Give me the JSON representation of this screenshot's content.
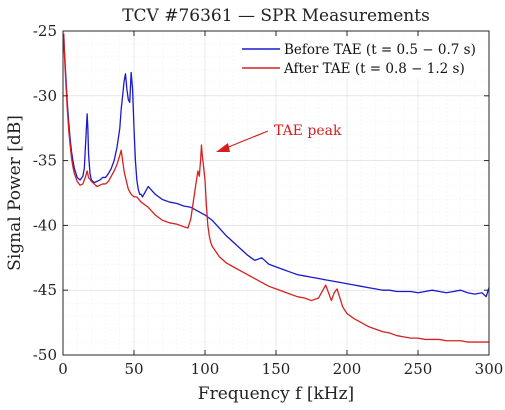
{
  "chart_data": {
    "type": "line",
    "title": "TCV #76361 — SPR Measurements",
    "xlabel": "Frequency f [kHz]",
    "ylabel": "Signal Power [dB]",
    "xlim": [
      0,
      300
    ],
    "ylim": [
      -50,
      -25
    ],
    "x_ticks": [
      0,
      50,
      100,
      150,
      200,
      250,
      300
    ],
    "y_ticks": [
      -25,
      -30,
      -35,
      -40,
      -45,
      -50
    ],
    "grid": true,
    "minor_grid": true,
    "legend_position": "top-right",
    "series": [
      {
        "name": "Before TAE (t = 0.5 − 0.7 s)",
        "color": "#1a1acc",
        "x": [
          0.5,
          1,
          2,
          3,
          4,
          5,
          6,
          7,
          8,
          10,
          12,
          14,
          15,
          16,
          17,
          17.5,
          18,
          19,
          20,
          22,
          24,
          26,
          28,
          30,
          32,
          34,
          36,
          38,
          40,
          41,
          42,
          43,
          44,
          45,
          46,
          47,
          48,
          49,
          50,
          51,
          52,
          53,
          54,
          55,
          56,
          58,
          60,
          65,
          70,
          75,
          80,
          85,
          90,
          95,
          100,
          105,
          110,
          115,
          120,
          125,
          130,
          135,
          140,
          145,
          150,
          155,
          160,
          165,
          170,
          175,
          180,
          185,
          190,
          195,
          200,
          205,
          210,
          215,
          220,
          225,
          230,
          235,
          240,
          245,
          250,
          255,
          260,
          265,
          270,
          275,
          280,
          285,
          290,
          295,
          298,
          300
        ],
        "y": [
          -25.2,
          -26.5,
          -28.5,
          -30.5,
          -32.0,
          -33.3,
          -34.3,
          -35.0,
          -35.6,
          -36.3,
          -36.5,
          -36.2,
          -35.6,
          -33.5,
          -31.4,
          -32.5,
          -34.5,
          -36.0,
          -36.5,
          -36.7,
          -36.6,
          -36.5,
          -36.3,
          -36.3,
          -36.0,
          -35.6,
          -35.0,
          -34.0,
          -32.5,
          -31.0,
          -30.0,
          -28.9,
          -28.3,
          -29.5,
          -30.3,
          -30.5,
          -28.2,
          -29.5,
          -32.5,
          -35.0,
          -36.5,
          -37.2,
          -37.6,
          -37.6,
          -37.8,
          -37.4,
          -37.0,
          -37.6,
          -38.0,
          -38.2,
          -38.3,
          -38.5,
          -38.6,
          -38.9,
          -39.2,
          -39.6,
          -40.2,
          -40.8,
          -41.3,
          -41.8,
          -42.3,
          -42.7,
          -42.5,
          -43.0,
          -43.2,
          -43.4,
          -43.6,
          -43.8,
          -43.9,
          -44.0,
          -44.1,
          -44.2,
          -44.3,
          -44.4,
          -44.5,
          -44.6,
          -44.7,
          -44.8,
          -44.9,
          -45.0,
          -45.0,
          -45.1,
          -45.1,
          -45.1,
          -45.2,
          -45.1,
          -45.0,
          -45.1,
          -45.2,
          -45.1,
          -45.0,
          -45.2,
          -45.3,
          -45.2,
          -45.5,
          -44.8
        ]
      },
      {
        "name": "After TAE (t = 0.8 − 1.2 s)",
        "color": "#d62020",
        "x": [
          0.5,
          1,
          2,
          3,
          4,
          5,
          6,
          7,
          8,
          10,
          12,
          14,
          16,
          17,
          18,
          20,
          22,
          24,
          26,
          28,
          30,
          32,
          34,
          36,
          38,
          40,
          41,
          42,
          43,
          44,
          46,
          48,
          50,
          52,
          55,
          60,
          65,
          70,
          75,
          80,
          85,
          88,
          90,
          92,
          94,
          95,
          96,
          97,
          97.5,
          98,
          99,
          100,
          101,
          102,
          103,
          104,
          105,
          110,
          115,
          120,
          125,
          130,
          135,
          140,
          145,
          150,
          155,
          160,
          165,
          170,
          175,
          180,
          183,
          185,
          187,
          189,
          191,
          193,
          195,
          197,
          200,
          205,
          210,
          215,
          220,
          225,
          230,
          235,
          240,
          245,
          250,
          255,
          260,
          265,
          270,
          275,
          280,
          285,
          290,
          295,
          300
        ],
        "y": [
          -25.2,
          -26.8,
          -29.0,
          -31.0,
          -32.6,
          -33.8,
          -34.8,
          -35.5,
          -36.0,
          -36.6,
          -36.9,
          -36.8,
          -36.2,
          -35.8,
          -36.3,
          -36.6,
          -36.8,
          -37.0,
          -36.9,
          -36.8,
          -36.8,
          -36.6,
          -36.2,
          -35.8,
          -35.3,
          -34.6,
          -34.2,
          -35.0,
          -35.8,
          -36.3,
          -37.2,
          -37.6,
          -37.8,
          -37.8,
          -38.2,
          -38.6,
          -39.2,
          -39.6,
          -39.8,
          -39.9,
          -40.1,
          -40.2,
          -39.5,
          -38.0,
          -36.5,
          -35.8,
          -36.2,
          -34.8,
          -33.8,
          -34.5,
          -35.5,
          -36.5,
          -38.5,
          -40.0,
          -40.8,
          -41.3,
          -41.6,
          -42.4,
          -42.9,
          -43.2,
          -43.5,
          -43.8,
          -44.1,
          -44.4,
          -44.7,
          -44.9,
          -45.1,
          -45.3,
          -45.5,
          -45.6,
          -45.8,
          -45.6,
          -45.0,
          -44.6,
          -45.2,
          -45.8,
          -45.2,
          -44.9,
          -45.6,
          -46.3,
          -46.8,
          -47.2,
          -47.5,
          -47.8,
          -48.0,
          -48.2,
          -48.3,
          -48.5,
          -48.6,
          -48.7,
          -48.7,
          -48.8,
          -48.8,
          -48.8,
          -48.9,
          -48.9,
          -48.9,
          -49.0,
          -49.0,
          -49.0,
          -49.0
        ]
      }
    ],
    "annotations": [
      {
        "text": "TAE peak",
        "color": "#d62020",
        "points_to": {
          "x": 98,
          "y": -33.6
        }
      }
    ],
    "legend": [
      {
        "label": "Before TAE (t = 0.5 − 0.7 s)",
        "color": "#1a1acc"
      },
      {
        "label": "After TAE (t = 0.8 − 1.2 s)",
        "color": "#d62020"
      }
    ]
  }
}
